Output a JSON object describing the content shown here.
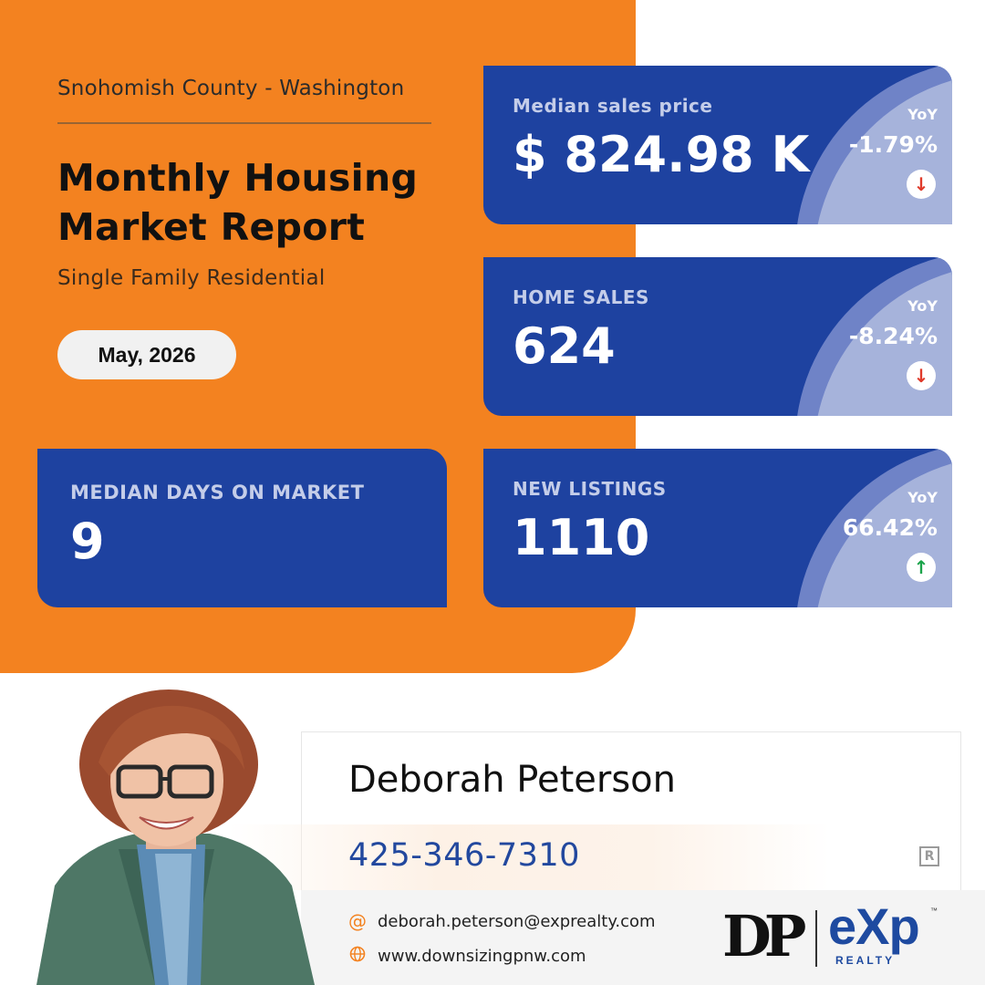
{
  "header": {
    "location": "Snohomish County - Washington",
    "title": "Monthly Housing Market Report",
    "subtitle": "Single Family Residential",
    "date": "May, 2026"
  },
  "metrics": [
    {
      "label": "Median sales price",
      "value": "$ 824.98 K",
      "yoy_label": "YoY",
      "yoy_value": "-1.79%",
      "trend": "down",
      "trend_icon": "arrow-down-icon",
      "trend_color": "#e03a2a"
    },
    {
      "label": "HOME SALES",
      "value": "624",
      "yoy_label": "YoY",
      "yoy_value": "-8.24%",
      "trend": "down",
      "trend_icon": "arrow-down-icon",
      "trend_color": "#e03a2a"
    },
    {
      "label": "NEW LISTINGS",
      "value": "1110",
      "yoy_label": "YoY",
      "yoy_value": "66.42%",
      "trend": "up",
      "trend_icon": "arrow-up-icon",
      "trend_color": "#1aa34a"
    }
  ],
  "days_on_market": {
    "label": "MEDIAN DAYS ON MARKET",
    "value": "9"
  },
  "agent": {
    "name": "Deborah Peterson",
    "phone": "425-346-7310",
    "email": "deborah.peterson@exprealty.com",
    "website": "www.downsizingpnw.com",
    "email_icon": "at-icon",
    "website_icon": "globe-icon"
  },
  "branding": {
    "dp_logo": "DP",
    "exp_logo": "eXp",
    "exp_sub": "REALTY",
    "exp_tm": "™"
  },
  "colors": {
    "orange": "#f38220",
    "card_blue": "#1e42a0",
    "phone_blue": "#22489e"
  }
}
